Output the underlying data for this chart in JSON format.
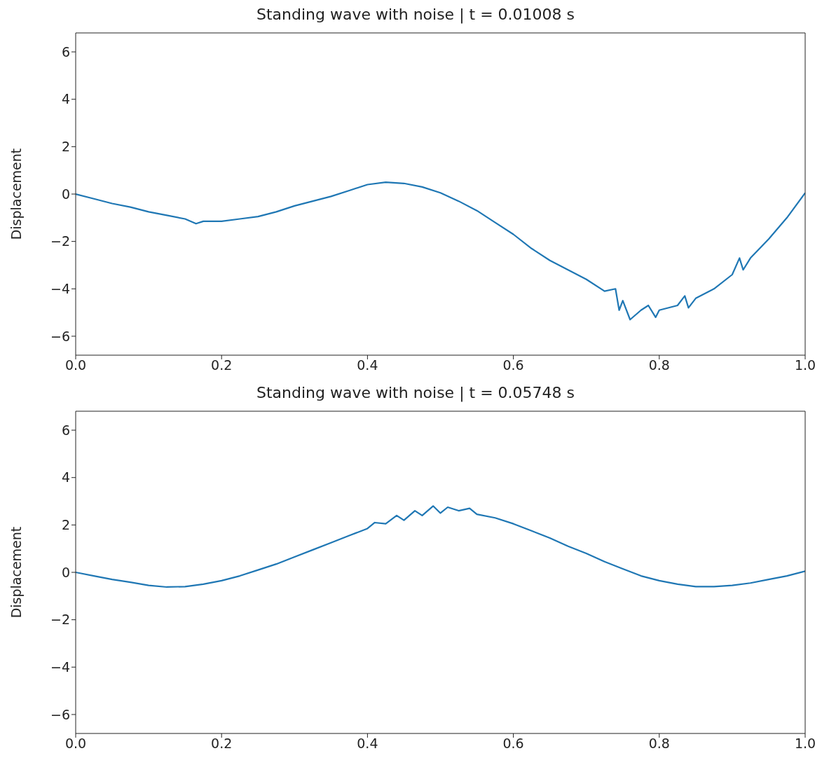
{
  "chart_data": [
    {
      "type": "line",
      "title": "Standing wave with noise | t = 0.01008 s",
      "ylabel": "Displacement",
      "xlim": [
        0,
        1
      ],
      "ylim": [
        -6.8,
        6.8
      ],
      "xticks": [
        {
          "value": 0,
          "label": "0.0"
        },
        {
          "value": 0.2,
          "label": "0.2"
        },
        {
          "value": 0.4,
          "label": "0.4"
        },
        {
          "value": 0.6,
          "label": "0.6"
        },
        {
          "value": 0.8,
          "label": "0.8"
        },
        {
          "value": 1,
          "label": "1.0"
        }
      ],
      "yticks": [
        {
          "value": -6,
          "label": "−6"
        },
        {
          "value": -4,
          "label": "−4"
        },
        {
          "value": -2,
          "label": "−2"
        },
        0,
        2,
        4,
        6
      ],
      "grid": false,
      "marker": "none",
      "line_style": "solid",
      "series": [
        {
          "color": "#1f77b4",
          "x": [
            0,
            0.025,
            0.05,
            0.075,
            0.1,
            0.125,
            0.15,
            0.165,
            0.175,
            0.2,
            0.225,
            0.25,
            0.275,
            0.3,
            0.325,
            0.35,
            0.375,
            0.4,
            0.425,
            0.45,
            0.475,
            0.5,
            0.525,
            0.55,
            0.575,
            0.6,
            0.625,
            0.65,
            0.675,
            0.7,
            0.725,
            0.74,
            0.745,
            0.75,
            0.76,
            0.775,
            0.785,
            0.795,
            0.8,
            0.825,
            0.835,
            0.84,
            0.85,
            0.875,
            0.9,
            0.91,
            0.915,
            0.925,
            0.95,
            0.975,
            1
          ],
          "values": [
            0,
            -0.2,
            -0.4,
            -0.55,
            -0.75,
            -0.9,
            -1.05,
            -1.25,
            -1.15,
            -1.15,
            -1.05,
            -0.95,
            -0.75,
            -0.5,
            -0.3,
            -0.1,
            0.15,
            0.4,
            0.5,
            0.45,
            0.3,
            0.05,
            -0.3,
            -0.7,
            -1.2,
            -1.7,
            -2.3,
            -2.8,
            -3.2,
            -3.6,
            -4.1,
            -4.0,
            -4.9,
            -4.5,
            -5.3,
            -4.9,
            -4.7,
            -5.2,
            -4.9,
            -4.7,
            -4.3,
            -4.8,
            -4.4,
            -4.0,
            -3.4,
            -2.7,
            -3.2,
            -2.7,
            -1.9,
            -1.0,
            0.05
          ]
        }
      ]
    },
    {
      "type": "line",
      "title": "Standing wave with noise | t = 0.05748 s",
      "ylabel": "Displacement",
      "xlim": [
        0,
        1
      ],
      "ylim": [
        -6.8,
        6.8
      ],
      "xticks": [
        {
          "value": 0,
          "label": "0.0"
        },
        {
          "value": 0.2,
          "label": "0.2"
        },
        {
          "value": 0.4,
          "label": "0.4"
        },
        {
          "value": 0.6,
          "label": "0.6"
        },
        {
          "value": 0.8,
          "label": "0.8"
        },
        {
          "value": 1,
          "label": "1.0"
        }
      ],
      "yticks": [
        {
          "value": -6,
          "label": "−6"
        },
        {
          "value": -4,
          "label": "−4"
        },
        {
          "value": -2,
          "label": "−2"
        },
        0,
        2,
        4,
        6
      ],
      "grid": false,
      "marker": "none",
      "line_style": "solid",
      "series": [
        {
          "color": "#1f77b4",
          "x": [
            0,
            0.025,
            0.05,
            0.075,
            0.1,
            0.125,
            0.15,
            0.175,
            0.2,
            0.225,
            0.25,
            0.275,
            0.3,
            0.325,
            0.35,
            0.375,
            0.4,
            0.41,
            0.425,
            0.44,
            0.45,
            0.465,
            0.475,
            0.49,
            0.5,
            0.51,
            0.525,
            0.54,
            0.55,
            0.575,
            0.6,
            0.625,
            0.65,
            0.675,
            0.7,
            0.725,
            0.75,
            0.775,
            0.8,
            0.825,
            0.85,
            0.875,
            0.9,
            0.925,
            0.95,
            0.975,
            1
          ],
          "values": [
            0,
            -0.15,
            -0.3,
            -0.42,
            -0.55,
            -0.62,
            -0.6,
            -0.5,
            -0.35,
            -0.15,
            0.1,
            0.35,
            0.65,
            0.95,
            1.25,
            1.55,
            1.85,
            2.1,
            2.05,
            2.4,
            2.2,
            2.6,
            2.4,
            2.8,
            2.5,
            2.75,
            2.6,
            2.7,
            2.45,
            2.3,
            2.05,
            1.75,
            1.45,
            1.1,
            0.8,
            0.45,
            0.15,
            -0.15,
            -0.35,
            -0.5,
            -0.6,
            -0.6,
            -0.55,
            -0.45,
            -0.3,
            -0.15,
            0.05
          ]
        }
      ]
    }
  ]
}
